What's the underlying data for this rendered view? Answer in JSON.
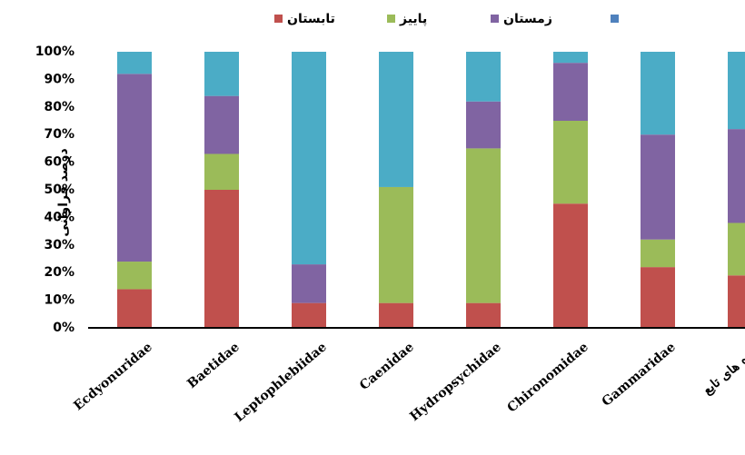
{
  "chart_data": {
    "type": "bar",
    "stacked": true,
    "percent": true,
    "ylabel": "درصد فراوانی",
    "ylim": [
      0,
      100
    ],
    "yticks": [
      "0%",
      "10%",
      "20%",
      "30%",
      "40%",
      "50%",
      "60%",
      "70%",
      "80%",
      "90%",
      "100%"
    ],
    "grid": false,
    "legend_position": "top",
    "categories": [
      "Ecdyonuridae",
      "Baetidae",
      "Leptophlebiidae",
      "Caenidae",
      "Hydropsychidae",
      "Chironomidae",
      "Gammaridae",
      "گروه های تابع"
    ],
    "series": [
      {
        "name": "تابستان",
        "color": "#c0504d",
        "values": [
          14,
          50,
          9,
          9,
          9,
          45,
          22,
          19
        ]
      },
      {
        "name": "پاییز",
        "color": "#9bbb59",
        "values": [
          10,
          13,
          0,
          42,
          56,
          30,
          10,
          19
        ]
      },
      {
        "name": "زمستان",
        "color": "#8064a2",
        "values": [
          68,
          21,
          14,
          0,
          17,
          21,
          38,
          34
        ]
      },
      {
        "name": "",
        "color": "#4bacc6",
        "legend_color": "#4f81bd",
        "values": [
          8,
          16,
          77,
          49,
          18,
          4,
          30,
          28
        ]
      }
    ]
  }
}
